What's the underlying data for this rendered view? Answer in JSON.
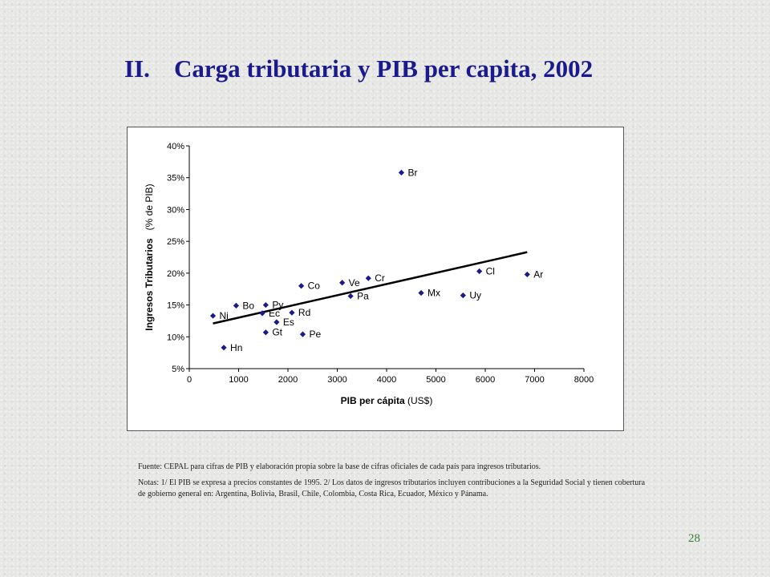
{
  "slide": {
    "title_number": "II.",
    "title_text": "Carga tributaria y PIB per capita, 2002",
    "page_number": "28"
  },
  "notes": {
    "source": "Fuente: CEPAL para cifras de PIB y elaboración propia sobre la base de cifras oficiales de cada país para ingresos tributarios.",
    "remarks": "Notas: 1/ El PIB se expresa a precios constantes de 1995. 2/ Los datos de ingresos tributarios incluyen contribuciones a la Seguridad Social y tienen cobertura de gobierno general en: Argentina, Bolivia, Brasil, Chile, Colombia, Costa Rica, Ecuador, México y Pánama."
  },
  "chart_data": {
    "type": "scatter",
    "xlabel_bold": "PIB per cápita",
    "xlabel_unit": " (US$)",
    "ylabel_bold": "Ingresos Tributarios",
    "ylabel_unit": "(% de PIB)",
    "xlim": [
      0,
      8000
    ],
    "ylim": [
      5,
      40
    ],
    "xticks": [
      0,
      1000,
      2000,
      3000,
      4000,
      5000,
      6000,
      7000,
      8000
    ],
    "yticks": [
      5,
      10,
      15,
      20,
      25,
      30,
      35,
      40
    ],
    "ytick_suffix": "%",
    "marker_color": "#1a1a8c",
    "grid": false,
    "points": [
      {
        "label": "Ni",
        "x": 480,
        "y": 13.3
      },
      {
        "label": "Hn",
        "x": 700,
        "y": 8.3
      },
      {
        "label": "Bo",
        "x": 950,
        "y": 14.9
      },
      {
        "label": "Ec",
        "x": 1480,
        "y": 13.7
      },
      {
        "label": "Py",
        "x": 1550,
        "y": 15.0
      },
      {
        "label": "Gt",
        "x": 1550,
        "y": 10.7
      },
      {
        "label": "Es",
        "x": 1770,
        "y": 12.3
      },
      {
        "label": "Rd",
        "x": 2080,
        "y": 13.8
      },
      {
        "label": "Co",
        "x": 2270,
        "y": 18.0
      },
      {
        "label": "Pe",
        "x": 2300,
        "y": 10.4
      },
      {
        "label": "Ve",
        "x": 3100,
        "y": 18.5
      },
      {
        "label": "Pa",
        "x": 3270,
        "y": 16.4
      },
      {
        "label": "Cr",
        "x": 3630,
        "y": 19.2
      },
      {
        "label": "Br",
        "x": 4300,
        "y": 35.8
      },
      {
        "label": "Mx",
        "x": 4700,
        "y": 16.9
      },
      {
        "label": "Uy",
        "x": 5550,
        "y": 16.5
      },
      {
        "label": "Cl",
        "x": 5880,
        "y": 20.3
      },
      {
        "label": "Ar",
        "x": 6850,
        "y": 19.8
      }
    ],
    "trendline": {
      "x": [
        480,
        6850
      ],
      "y": [
        12.1,
        23.3
      ]
    }
  }
}
